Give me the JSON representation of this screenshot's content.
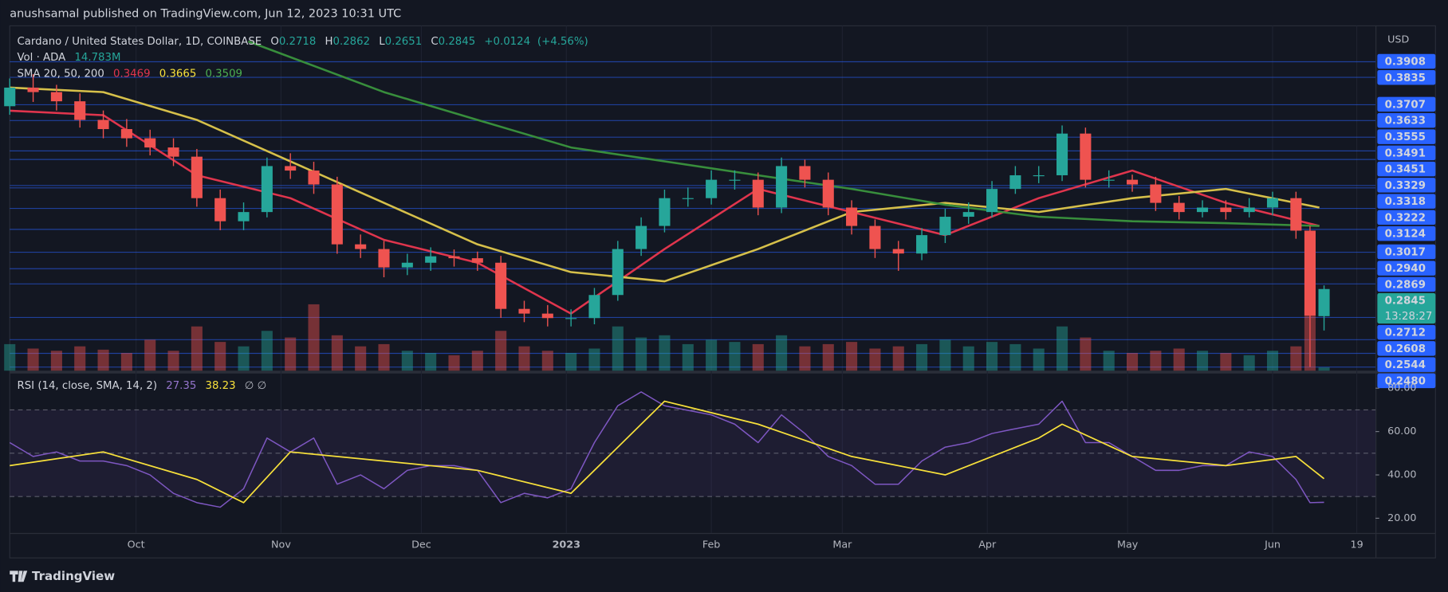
{
  "header": {
    "publisher": "anushsamal published on TradingView.com, Jun 12, 2023 10:31 UTC",
    "brand": "TradingView"
  },
  "chart_data": [
    {
      "type": "candlestick",
      "title": "Cardano / United States Dollar, 1D, COINBASE",
      "ohlc_letters": [
        "O",
        "H",
        "L",
        "C"
      ],
      "change_label": "+0.0124",
      "change_pct_label": "(+4.56%)",
      "y_axis_label": "USD",
      "colors": {
        "up": "#26a69a",
        "down": "#ef5350",
        "level": "#2962ff"
      },
      "x": [
        0,
        5,
        10,
        15,
        20,
        25,
        30,
        35,
        40,
        45,
        50,
        55,
        60,
        65,
        70,
        75,
        80,
        85,
        90,
        95,
        100,
        105,
        110,
        115,
        120,
        125,
        130,
        135,
        140,
        145,
        150,
        155,
        160,
        165,
        170,
        175,
        180,
        185,
        190,
        195,
        200,
        205,
        210,
        215,
        220,
        225,
        230,
        235,
        240,
        245,
        250,
        255,
        260,
        265,
        270,
        275,
        278,
        281
      ],
      "open": [
        0.37,
        0.3787,
        0.3766,
        0.3723,
        0.3636,
        0.3593,
        0.355,
        0.3507,
        0.3464,
        0.327,
        0.3162,
        0.3205,
        0.342,
        0.3399,
        0.3334,
        0.3054,
        0.3032,
        0.2946,
        0.2968,
        0.2998,
        0.2989,
        0.2968,
        0.2752,
        0.273,
        0.2709,
        0.2709,
        0.2817,
        0.3032,
        0.314,
        0.327,
        0.327,
        0.3356,
        0.3356,
        0.3226,
        0.342,
        0.3356,
        0.3226,
        0.314,
        0.3032,
        0.3011,
        0.3097,
        0.3183,
        0.3205,
        0.3313,
        0.3377,
        0.3377,
        0.3572,
        0.3356,
        0.3356,
        0.3334,
        0.3248,
        0.3205,
        0.3226,
        0.3205,
        0.3226,
        0.327,
        0.3118,
        0.2718
      ],
      "high": [
        0.383,
        0.385,
        0.38,
        0.376,
        0.368,
        0.364,
        0.359,
        0.355,
        0.35,
        0.331,
        0.325,
        0.346,
        0.348,
        0.344,
        0.337,
        0.31,
        0.307,
        0.301,
        0.304,
        0.303,
        0.302,
        0.3,
        0.279,
        0.277,
        0.275,
        0.285,
        0.307,
        0.318,
        0.331,
        0.332,
        0.34,
        0.34,
        0.339,
        0.346,
        0.345,
        0.339,
        0.326,
        0.317,
        0.307,
        0.313,
        0.322,
        0.325,
        0.335,
        0.342,
        0.342,
        0.361,
        0.36,
        0.34,
        0.338,
        0.337,
        0.328,
        0.326,
        0.326,
        0.327,
        0.33,
        0.33,
        0.314,
        0.2862
      ],
      "low": [
        0.366,
        0.372,
        0.368,
        0.36,
        0.355,
        0.351,
        0.347,
        0.342,
        0.323,
        0.312,
        0.312,
        0.318,
        0.336,
        0.329,
        0.301,
        0.299,
        0.29,
        0.291,
        0.293,
        0.295,
        0.293,
        0.271,
        0.269,
        0.267,
        0.267,
        0.268,
        0.279,
        0.3,
        0.311,
        0.323,
        0.324,
        0.331,
        0.319,
        0.32,
        0.332,
        0.319,
        0.31,
        0.299,
        0.293,
        0.298,
        0.306,
        0.315,
        0.318,
        0.329,
        0.334,
        0.335,
        0.332,
        0.332,
        0.33,
        0.321,
        0.317,
        0.318,
        0.317,
        0.318,
        0.319,
        0.308,
        0.248,
        0.2651
      ],
      "close": [
        0.3787,
        0.3766,
        0.3723,
        0.3636,
        0.3593,
        0.355,
        0.3507,
        0.3464,
        0.327,
        0.3162,
        0.3205,
        0.342,
        0.3399,
        0.3334,
        0.3054,
        0.3032,
        0.2946,
        0.2968,
        0.2998,
        0.2989,
        0.2968,
        0.2752,
        0.273,
        0.2709,
        0.2709,
        0.2817,
        0.3032,
        0.314,
        0.327,
        0.327,
        0.3356,
        0.3356,
        0.3226,
        0.342,
        0.3356,
        0.3226,
        0.314,
        0.3032,
        0.3011,
        0.3097,
        0.3183,
        0.3205,
        0.3313,
        0.3377,
        0.3377,
        0.3572,
        0.3356,
        0.3356,
        0.3334,
        0.3248,
        0.3205,
        0.3226,
        0.3205,
        0.3226,
        0.327,
        0.3118,
        0.2721,
        0.2845
      ],
      "volume": {
        "name": "Vol · ADA",
        "last_label": "14.783M",
        "values": [
          120,
          100,
          90,
          110,
          95,
          80,
          140,
          90,
          200,
          130,
          110,
          180,
          150,
          300,
          160,
          110,
          120,
          90,
          80,
          70,
          90,
          180,
          110,
          90,
          80,
          100,
          200,
          150,
          160,
          120,
          140,
          130,
          120,
          160,
          110,
          120,
          130,
          100,
          110,
          120,
          140,
          110,
          130,
          120,
          100,
          200,
          150,
          90,
          80,
          90,
          100,
          90,
          80,
          70,
          90,
          110,
          280,
          14.783
        ]
      },
      "sma": {
        "name": "SMA 20, 50, 200",
        "series": [
          {
            "color": "#e0354d",
            "legend_value": 0.3469,
            "x": [
              0,
              20,
              40,
              60,
              80,
              100,
              120,
              140,
              160,
              180,
              200,
              220,
              240,
              260,
              280
            ],
            "values": [
              0.3679,
              0.3658,
              0.3377,
              0.327,
              0.3075,
              0.2968,
              0.273,
              0.3032,
              0.3313,
              0.3205,
              0.3097,
              0.327,
              0.3399,
              0.3248,
              0.314
            ]
          },
          {
            "color": "#d6c04a",
            "legend_value": 0.3665,
            "x": [
              0,
              20,
              40,
              60,
              80,
              100,
              120,
              140,
              160,
              180,
              200,
              220,
              240,
              260,
              280
            ],
            "values": [
              0.3787,
              0.3766,
              0.3636,
              0.3442,
              0.3248,
              0.3054,
              0.2924,
              0.2881,
              0.3032,
              0.3205,
              0.3248,
              0.3205,
              0.327,
              0.3313,
              0.3226
            ]
          },
          {
            "color": "#388e3c",
            "legend_value": 0.3509,
            "x": [
              51,
              80,
              100,
              120,
              140,
              160,
              180,
              200,
              220,
              240,
              260,
              280
            ],
            "values": [
              0.4003,
              0.3766,
              0.3636,
              0.3507,
              0.3442,
              0.3377,
              0.3313,
              0.3239,
              0.3183,
              0.3162,
              0.3153,
              0.314
            ]
          }
        ]
      },
      "price_levels": [
        0.3908,
        0.3835,
        0.3707,
        0.3633,
        0.3555,
        0.3491,
        0.3451,
        0.3329,
        0.3318,
        0.3222,
        0.3124,
        0.3017,
        {
          "value": 0.294,
          "label": "0.2940"
        },
        0.2869,
        0.2712,
        0.2608,
        0.2544,
        {
          "value": 0.248,
          "label": "0.2480"
        }
      ],
      "countdown": "13:28:27",
      "xlim": [
        0,
        292
      ],
      "xticks": [
        {
          "value": 27,
          "label": "Oct"
        },
        {
          "value": 58,
          "label": "Nov"
        },
        {
          "value": 88,
          "label": "Dec"
        },
        {
          "value": 119,
          "label": "2023"
        },
        {
          "value": 150,
          "label": "Feb"
        },
        {
          "value": 178,
          "label": "Mar"
        },
        {
          "value": 209,
          "label": "Apr"
        },
        {
          "value": 239,
          "label": "May"
        },
        {
          "value": 270,
          "label": "Jun"
        },
        {
          "value": 288,
          "label": "19"
        }
      ],
      "ylim": [
        0.2463,
        0.4076
      ]
    },
    {
      "type": "line",
      "title": "RSI (14, close, SMA, 14, 2)",
      "placeholders": "∅ ∅",
      "series": [
        {
          "color": "#7e57c2",
          "x": [
            0,
            5,
            10,
            15,
            20,
            25,
            30,
            35,
            40,
            45,
            50,
            55,
            60,
            65,
            70,
            75,
            80,
            85,
            90,
            95,
            100,
            105,
            110,
            115,
            120,
            125,
            130,
            135,
            140,
            145,
            150,
            155,
            160,
            165,
            170,
            175,
            180,
            185,
            190,
            195,
            200,
            205,
            210,
            215,
            220,
            225,
            230,
            235,
            240,
            245,
            250,
            255,
            260,
            265,
            270,
            275,
            278,
            281
          ],
          "values": [
            54.9,
            48.5,
            50.6,
            46.4,
            46.4,
            44.3,
            40,
            31.5,
            27.2,
            25.1,
            33.6,
            57,
            50.6,
            57,
            35.7,
            40,
            33.6,
            42.1,
            44.3,
            44.3,
            42.1,
            27.2,
            31.5,
            29.4,
            33.6,
            54.9,
            71.9,
            78.3,
            71.9,
            69.8,
            67.7,
            63.4,
            54.9,
            67.7,
            59.1,
            48.5,
            44.3,
            35.7,
            35.7,
            46.4,
            52.8,
            54.9,
            59.1,
            61.3,
            63.4,
            74,
            54.9,
            54.9,
            48.5,
            42.1,
            42.1,
            44.3,
            44.3,
            50.6,
            48.5,
            37.9,
            27.2,
            27.35
          ]
        },
        {
          "color": "#f7e03b",
          "x": [
            0,
            20,
            40,
            50,
            60,
            80,
            100,
            120,
            140,
            160,
            180,
            200,
            220,
            225,
            240,
            260,
            275,
            281
          ],
          "values": [
            44.3,
            50.6,
            37.9,
            27.2,
            50.6,
            46.4,
            42.1,
            31.5,
            74,
            63.4,
            48.5,
            40,
            57,
            63.4,
            48.5,
            44.3,
            48.5,
            38.23
          ]
        }
      ],
      "levels": [
        70,
        50,
        30
      ],
      "ylim": [
        13.2,
        86.8
      ],
      "yticks": [
        {
          "value": 80,
          "label": "80.00"
        },
        {
          "value": 60,
          "label": "60.00"
        },
        {
          "value": 40,
          "label": "40.00"
        },
        {
          "value": 20,
          "label": "20.00"
        }
      ]
    }
  ]
}
